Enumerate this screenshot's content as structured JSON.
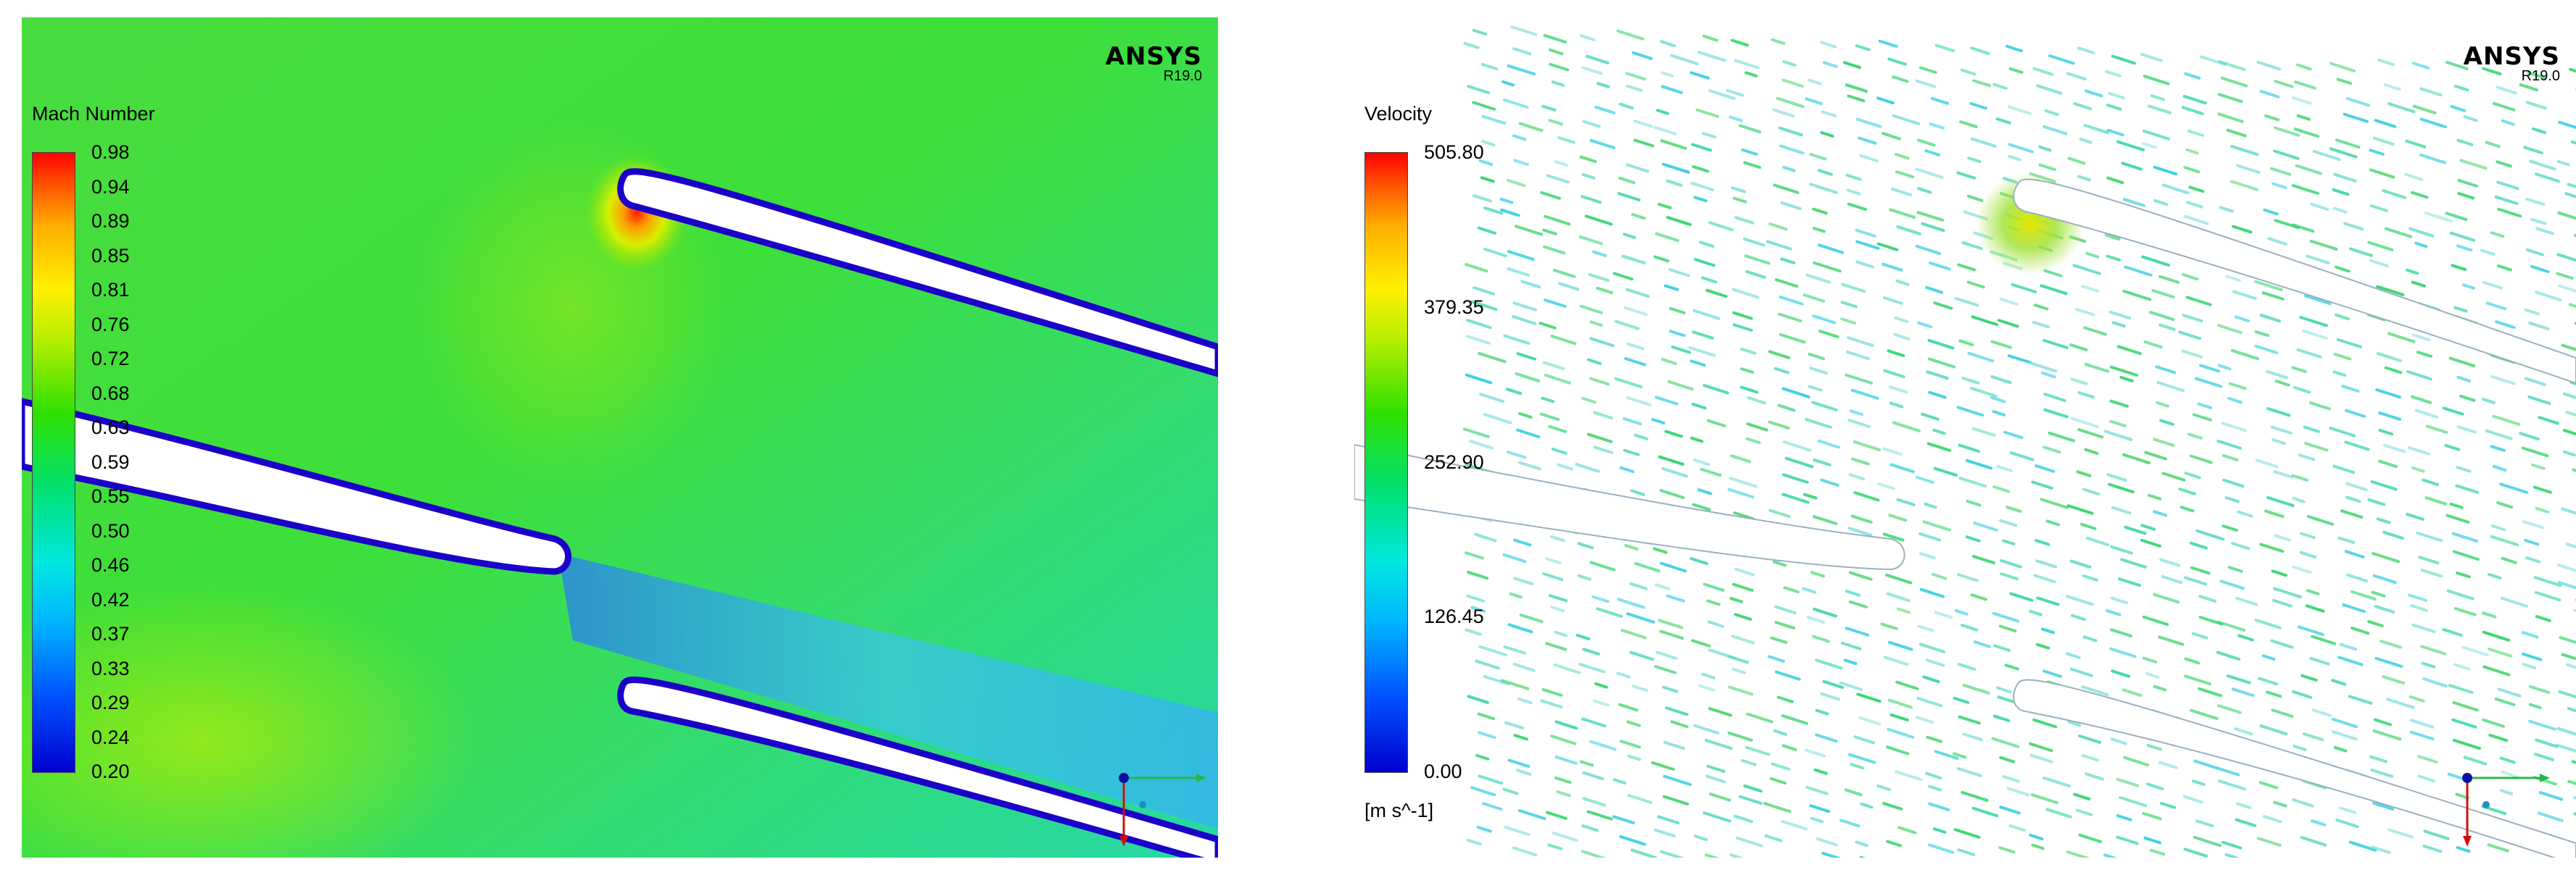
{
  "left_panel": {
    "logo": {
      "name": "ANSYS",
      "version": "R19.0"
    },
    "legend_title": "Mach Number",
    "ticks": [
      "0.98",
      "0.94",
      "0.89",
      "0.85",
      "0.81",
      "0.76",
      "0.72",
      "0.68",
      "0.63",
      "0.59",
      "0.55",
      "0.50",
      "0.46",
      "0.42",
      "0.37",
      "0.33",
      "0.29",
      "0.24",
      "0.20"
    ]
  },
  "right_panel": {
    "logo": {
      "name": "ANSYS",
      "version": "R19.0"
    },
    "legend_title": "Velocity",
    "ticks": [
      "505.80",
      "379.35",
      "252.90",
      "126.45",
      "0.00"
    ],
    "unit": "[m s^-1]"
  },
  "colors": {
    "blade": "#ffffff",
    "edge": "#1a00c8",
    "bulk": "#39de2a",
    "wake": "#24c3e6",
    "stagnation": "#ff1e00"
  }
}
